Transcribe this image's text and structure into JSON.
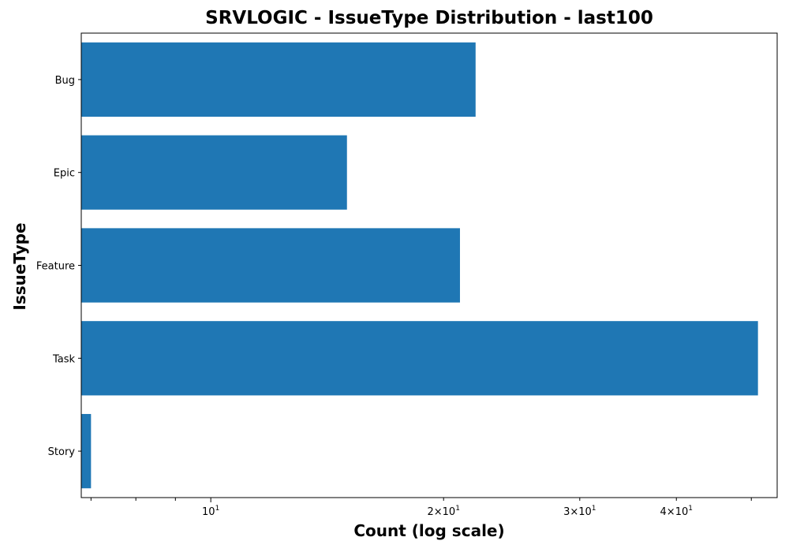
{
  "chart_data": {
    "type": "bar",
    "orientation": "horizontal",
    "title": "SRVLOGIC - IssueType Distribution - last100",
    "xlabel": "Count (log scale)",
    "ylabel": "IssueType",
    "x_scale": "log",
    "xlim": [
      6.8,
      54
    ],
    "categories": [
      "Bug",
      "Epic",
      "Feature",
      "Task",
      "Story"
    ],
    "values": [
      22,
      15,
      21,
      51,
      7
    ],
    "x_major_ticks": [
      {
        "value": 10,
        "base": "10",
        "exp": "1"
      }
    ],
    "x_minor_ticks": [
      {
        "value": 20,
        "mant": "2",
        "base": "10",
        "exp": "1"
      },
      {
        "value": 30,
        "mant": "3",
        "base": "10",
        "exp": "1"
      },
      {
        "value": 40,
        "mant": "4",
        "base": "10",
        "exp": "1"
      }
    ],
    "x_unlabeled_minor_ticks": [
      7,
      8,
      9,
      50
    ],
    "bar_color": "#1f77b4",
    "grid": false,
    "legend": "none"
  }
}
